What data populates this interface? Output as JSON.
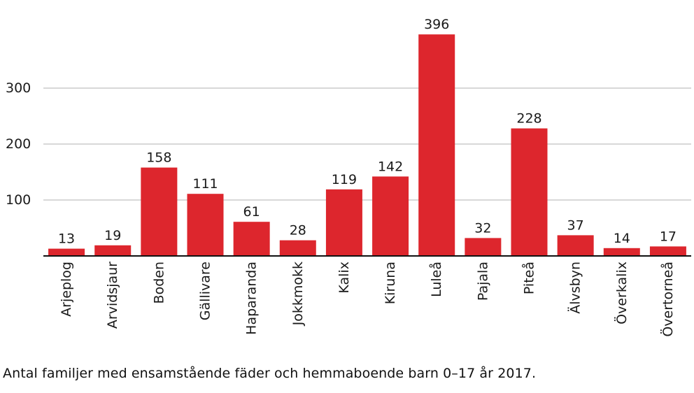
{
  "caption": "Antal familjer med ensamstående fäder och hemmaboende barn 0–17 år 2017.",
  "colors": {
    "bar": "#dd262d",
    "grid": "#cccccc",
    "axis": "#111111",
    "text": "#1a1a1a"
  },
  "chart_data": {
    "type": "bar",
    "title": "",
    "xlabel": "",
    "ylabel": "",
    "categories": [
      "Arjeplog",
      "Arvidsjaur",
      "Boden",
      "Gällivare",
      "Haparanda",
      "Jokkmokk",
      "Kalix",
      "Kiruna",
      "Luleå",
      "Pajala",
      "Piteå",
      "Älvsbyn",
      "Överkalix",
      "Övertorneå"
    ],
    "values": [
      13,
      19,
      158,
      111,
      61,
      28,
      119,
      142,
      396,
      32,
      228,
      37,
      14,
      17
    ],
    "data_labels": [
      "13",
      "19",
      "158",
      "111",
      "61",
      "28",
      "119",
      "142",
      "396",
      "32",
      "228",
      "37",
      "14",
      "17"
    ],
    "yticks": [
      100,
      200,
      300
    ],
    "ytick_labels": [
      "100",
      "200",
      "300"
    ],
    "ylim": [
      0,
      400
    ],
    "grid": true,
    "legend": "none"
  }
}
